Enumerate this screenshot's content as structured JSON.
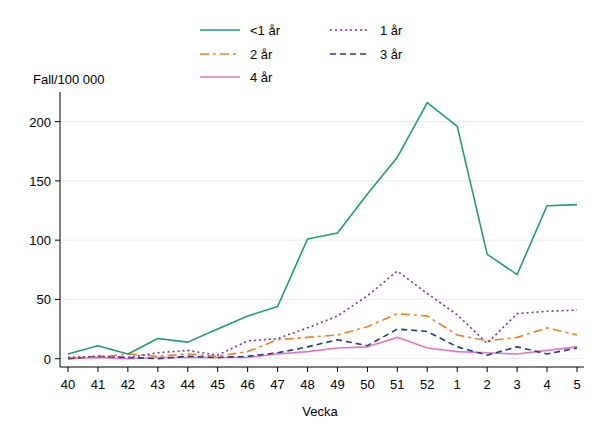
{
  "chart_data": {
    "type": "line",
    "y_label": "Fall/100 000",
    "x_label": "Vecka",
    "categories": [
      "40",
      "41",
      "42",
      "43",
      "44",
      "45",
      "46",
      "47",
      "48",
      "49",
      "50",
      "51",
      "52",
      "1",
      "2",
      "3",
      "4",
      "5"
    ],
    "ylim": [
      -7,
      225
    ],
    "yticks": [
      0,
      50,
      100,
      150,
      200
    ],
    "grid": true,
    "legend": "top",
    "series": [
      {
        "name": "<1 år",
        "color": "#1b9e77",
        "line_style": "solid",
        "values": [
          4,
          11,
          4,
          17,
          14,
          25,
          36,
          44,
          101,
          106,
          139,
          170,
          216,
          196,
          88,
          71,
          129,
          130
        ]
      },
      {
        "name": "1 år",
        "color": "#7b3294",
        "line_style": "dotted",
        "values": [
          1,
          2,
          1,
          5,
          7,
          3,
          15,
          17,
          26,
          36,
          53,
          74,
          55,
          37,
          13,
          38,
          40,
          41
        ]
      },
      {
        "name": "2 år",
        "color": "#f07f1e",
        "line_style": "dashdot",
        "values": [
          1,
          1,
          4,
          2,
          4,
          2,
          6,
          16,
          18,
          20,
          27,
          38,
          36,
          20,
          15,
          18,
          26,
          20
        ]
      },
      {
        "name": "3 år",
        "color": "#1f3d8f",
        "line_style": "dashed",
        "values": [
          0,
          2,
          1,
          0,
          2,
          1,
          2,
          5,
          10,
          16,
          11,
          25,
          23,
          10,
          3,
          10,
          4,
          9
        ]
      },
      {
        "name": "4 år",
        "color": "#e377c2",
        "line_style": "solid",
        "values": [
          0,
          1,
          0,
          1,
          1,
          1,
          1,
          4,
          6,
          9,
          10,
          18,
          9,
          6,
          5,
          4,
          7,
          10
        ]
      }
    ]
  }
}
